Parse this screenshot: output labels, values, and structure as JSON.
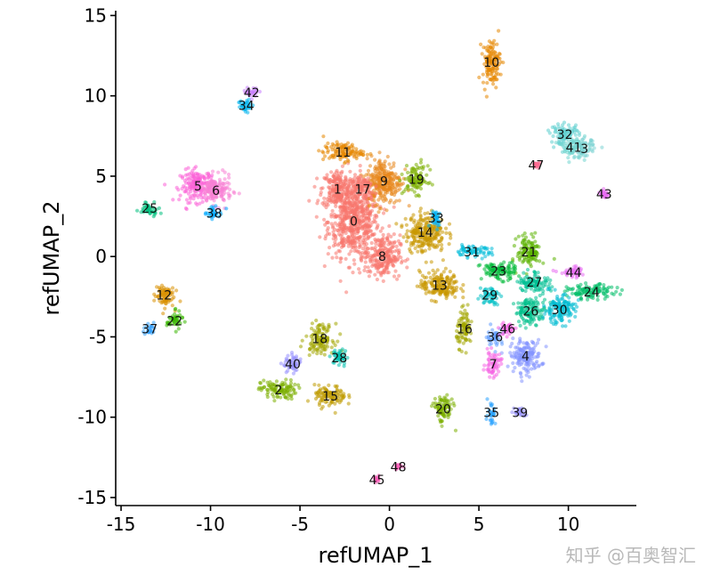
{
  "chart_data": {
    "type": "scatter",
    "title": "",
    "xlabel": "refUMAP_1",
    "ylabel": "refUMAP_2",
    "xlim": [
      -15.3,
      13.8
    ],
    "ylim": [
      -15.5,
      15.3
    ],
    "x_ticks": [
      -15,
      -10,
      -5,
      0,
      5,
      10
    ],
    "x_tick_labels": [
      "-15",
      "-10",
      "-5",
      "0",
      "5",
      "10"
    ],
    "y_ticks": [
      -15,
      -10,
      -5,
      0,
      5,
      10,
      15
    ],
    "y_tick_labels": [
      "-15",
      "-10",
      "-5",
      "0",
      "5",
      "10",
      "15"
    ],
    "grid": false,
    "legend": "none",
    "clusters": [
      {
        "label": "0",
        "x": -2.0,
        "y": 2.2,
        "sx": 1.3,
        "sy": 2.0,
        "color": "#f8766d"
      },
      {
        "label": "1",
        "x": -2.9,
        "y": 4.2,
        "sx": 0.8,
        "sy": 1.1,
        "color": "#f8766d"
      },
      {
        "label": "2",
        "x": -6.2,
        "y": -8.3,
        "sx": 0.9,
        "sy": 0.55,
        "color": "#7cae00"
      },
      {
        "label": "4",
        "x": 7.6,
        "y": -6.2,
        "sx": 0.8,
        "sy": 0.9,
        "color": "#8494ff"
      },
      {
        "label": "5",
        "x": -10.7,
        "y": 4.4,
        "sx": 0.9,
        "sy": 0.9,
        "color": "#fb61d7"
      },
      {
        "label": "6",
        "x": -9.7,
        "y": 4.1,
        "sx": 0.8,
        "sy": 0.8,
        "color": "#f87fd4"
      },
      {
        "label": "7",
        "x": 5.8,
        "y": -6.7,
        "sx": 0.4,
        "sy": 0.7,
        "color": "#f564e3"
      },
      {
        "label": "8",
        "x": -0.4,
        "y": 0.0,
        "sx": 0.9,
        "sy": 1.2,
        "color": "#f8766d"
      },
      {
        "label": "9",
        "x": -0.3,
        "y": 4.7,
        "sx": 0.9,
        "sy": 1.3,
        "color": "#e7861b"
      },
      {
        "label": "10",
        "x": 5.7,
        "y": 12.1,
        "sx": 0.45,
        "sy": 1.3,
        "color": "#e58700"
      },
      {
        "label": "11",
        "x": -2.6,
        "y": 6.5,
        "sx": 1.0,
        "sy": 0.5,
        "color": "#e58700"
      },
      {
        "label": "12",
        "x": -12.6,
        "y": -2.4,
        "sx": 0.5,
        "sy": 0.7,
        "color": "#d89000"
      },
      {
        "label": "13",
        "x": 2.8,
        "y": -1.8,
        "sx": 1.0,
        "sy": 0.8,
        "color": "#c99800"
      },
      {
        "label": "14",
        "x": 2.0,
        "y": 1.5,
        "sx": 1.0,
        "sy": 1.1,
        "color": "#c99800"
      },
      {
        "label": "15",
        "x": -3.3,
        "y": -8.7,
        "sx": 0.8,
        "sy": 0.6,
        "color": "#c09b00"
      },
      {
        "label": "16",
        "x": 4.2,
        "y": -4.5,
        "sx": 0.4,
        "sy": 1.0,
        "color": "#a3a500"
      },
      {
        "label": "17",
        "x": -1.5,
        "y": 4.2,
        "sx": 0.6,
        "sy": 0.8,
        "color": "#f8766d"
      },
      {
        "label": "18",
        "x": -3.9,
        "y": -5.1,
        "sx": 0.7,
        "sy": 0.8,
        "color": "#a3a500"
      },
      {
        "label": "19",
        "x": 1.5,
        "y": 4.8,
        "sx": 0.6,
        "sy": 0.8,
        "color": "#7cae00"
      },
      {
        "label": "20",
        "x": 3.0,
        "y": -9.5,
        "sx": 0.5,
        "sy": 0.8,
        "color": "#7cae00"
      },
      {
        "label": "21",
        "x": 7.8,
        "y": 0.3,
        "sx": 0.6,
        "sy": 0.9,
        "color": "#5bb300"
      },
      {
        "label": "22",
        "x": -12.0,
        "y": -4.0,
        "sx": 0.4,
        "sy": 0.5,
        "color": "#39b600"
      },
      {
        "label": "23",
        "x": 6.1,
        "y": -0.9,
        "sx": 0.9,
        "sy": 0.5,
        "color": "#00ba38"
      },
      {
        "label": "24",
        "x": 11.3,
        "y": -2.2,
        "sx": 1.2,
        "sy": 0.4,
        "color": "#00be67"
      },
      {
        "label": "25",
        "x": -13.4,
        "y": 3.0,
        "sx": 0.5,
        "sy": 0.4,
        "color": "#00bf7d"
      },
      {
        "label": "26",
        "x": 7.9,
        "y": -3.4,
        "sx": 0.8,
        "sy": 0.7,
        "color": "#00c08b"
      },
      {
        "label": "27",
        "x": 8.1,
        "y": -1.6,
        "sx": 0.8,
        "sy": 0.6,
        "color": "#00c094"
      },
      {
        "label": "28",
        "x": -2.8,
        "y": -6.3,
        "sx": 0.4,
        "sy": 0.5,
        "color": "#00c0af"
      },
      {
        "label": "29",
        "x": 5.6,
        "y": -2.4,
        "sx": 0.5,
        "sy": 0.5,
        "color": "#00bfc4"
      },
      {
        "label": "30",
        "x": 9.5,
        "y": -3.3,
        "sx": 0.8,
        "sy": 0.8,
        "color": "#00bbd2"
      },
      {
        "label": "31",
        "x": 4.6,
        "y": 0.3,
        "sx": 1.0,
        "sy": 0.3,
        "color": "#00bcd8"
      },
      {
        "label": "32",
        "x": 9.8,
        "y": 7.6,
        "sx": 0.7,
        "sy": 0.6,
        "color": "#5fcfd0"
      },
      {
        "label": "33",
        "x": 2.6,
        "y": 2.4,
        "sx": 0.3,
        "sy": 0.5,
        "color": "#00b0f6"
      },
      {
        "label": "34",
        "x": -8.0,
        "y": 9.4,
        "sx": 0.4,
        "sy": 0.4,
        "color": "#00b4ef"
      },
      {
        "label": "35",
        "x": 5.7,
        "y": -9.7,
        "sx": 0.2,
        "sy": 0.7,
        "color": "#29a3ff"
      },
      {
        "label": "36",
        "x": 5.9,
        "y": -5.0,
        "sx": 0.4,
        "sy": 0.5,
        "color": "#619cff"
      },
      {
        "label": "37",
        "x": -13.4,
        "y": -4.5,
        "sx": 0.3,
        "sy": 0.4,
        "color": "#35a2ff"
      },
      {
        "label": "38",
        "x": -9.8,
        "y": 2.7,
        "sx": 0.5,
        "sy": 0.3,
        "color": "#00a9ff"
      },
      {
        "label": "39",
        "x": 7.3,
        "y": -9.7,
        "sx": 0.3,
        "sy": 0.3,
        "color": "#9590ff"
      },
      {
        "label": "40",
        "x": -5.4,
        "y": -6.7,
        "sx": 0.5,
        "sy": 0.5,
        "color": "#9590ff"
      },
      {
        "label": "41",
        "x": 10.3,
        "y": 6.8,
        "sx": 0.6,
        "sy": 0.6,
        "color": "#72d6d0"
      },
      {
        "label": "42",
        "x": -7.7,
        "y": 10.2,
        "sx": 0.4,
        "sy": 0.3,
        "color": "#c77cff"
      },
      {
        "label": "3",
        "x": 10.9,
        "y": 6.7,
        "sx": 0.5,
        "sy": 0.5,
        "color": "#7ed3d3"
      },
      {
        "label": "43",
        "x": 12.0,
        "y": 3.9,
        "sx": 0.2,
        "sy": 0.2,
        "color": "#e76bf3"
      },
      {
        "label": "44",
        "x": 10.3,
        "y": -1.0,
        "sx": 0.7,
        "sy": 0.3,
        "color": "#e76bf3"
      },
      {
        "label": "45",
        "x": -0.7,
        "y": -13.9,
        "sx": 0.15,
        "sy": 0.15,
        "color": "#ff62bc"
      },
      {
        "label": "46",
        "x": 6.6,
        "y": -4.5,
        "sx": 0.4,
        "sy": 0.4,
        "color": "#f564e3"
      },
      {
        "label": "47",
        "x": 8.2,
        "y": 5.7,
        "sx": 0.2,
        "sy": 0.2,
        "color": "#ff6c91"
      },
      {
        "label": "48",
        "x": 0.5,
        "y": -13.1,
        "sx": 0.15,
        "sy": 0.15,
        "color": "#ff62bc"
      }
    ]
  },
  "watermark": "知乎 @百奥智汇"
}
